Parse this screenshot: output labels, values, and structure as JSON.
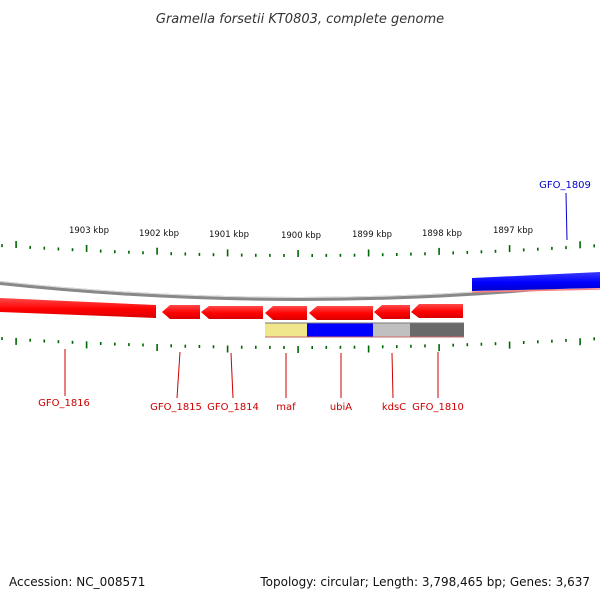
{
  "title": "Gramella forsetii KT0803, complete genome",
  "footer": {
    "accession": "Accession: NC_008571",
    "topology": "Topology: circular; Length: 3,798,465 bp; Genes: 3,637"
  },
  "scale_labels": [
    "1903 kbp",
    "1902 kbp",
    "1901 kbp",
    "1900 kbp",
    "1899 kbp",
    "1898 kbp",
    "1897 kbp"
  ],
  "genes": [
    {
      "label": "GFO_1816",
      "strand": "minus",
      "color": "#ff0000"
    },
    {
      "label": "GFO_1815",
      "strand": "minus",
      "color": "#ff0000"
    },
    {
      "label": "GFO_1814",
      "strand": "minus",
      "color": "#ff0000"
    },
    {
      "label": "maf",
      "strand": "minus",
      "color": "#ff0000"
    },
    {
      "label": "ubiA",
      "strand": "minus",
      "color": "#ff0000"
    },
    {
      "label": "kdsC",
      "strand": "minus",
      "color": "#ff0000"
    },
    {
      "label": "GFO_1810",
      "strand": "minus",
      "color": "#ff0000"
    },
    {
      "label": "GFO_1809",
      "strand": "plus",
      "color": "#0000ff"
    }
  ],
  "colors": {
    "minus_strand": "#ff0000",
    "plus_strand": "#0000ff",
    "minus_label": "#cc0000",
    "plus_label": "#0000cc",
    "backbone": "#888888",
    "tick": "#006600",
    "annotation_yellow": "#f0e68c",
    "annotation_blue": "#0000ff",
    "annotation_light_gray": "#c0c0c0",
    "annotation_dark_gray": "#696969"
  }
}
